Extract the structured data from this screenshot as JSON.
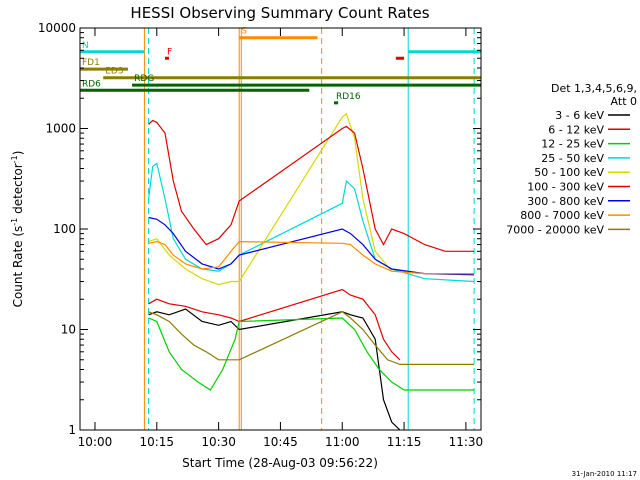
{
  "chart_data": {
    "type": "line",
    "title": "HESSI Observing Summary Count Rates",
    "xlabel": "Start Time (28-Aug-03 09:56:22)",
    "ylabel": "Count Rate (s",
    "ylabel_sup1": "-1",
    "ylabel_mid": " detector",
    "ylabel_sup2": "-1",
    "ylabel_end": ")",
    "y_scale": "log",
    "ylim": [
      1,
      10000
    ],
    "xlim": [
      "09:56:22",
      "11:33:40"
    ],
    "x_ticks": [
      "10:00",
      "10:15",
      "10:30",
      "10:45",
      "11:00",
      "11:15",
      "11:30"
    ],
    "y_ticks": [
      "1",
      "10",
      "100",
      "1000",
      "10000"
    ],
    "timestamp": "31-Jan-2010 11:17",
    "legend_header": [
      "Det 1,3,4,5,6,9,",
      "Att 0"
    ],
    "legend_placement": "right",
    "series": [
      {
        "name": "3 - 6 keV",
        "color": "#000000",
        "x": [
          "10:13",
          "10:15",
          "10:18",
          "10:22",
          "10:26",
          "10:30",
          "10:33",
          "10:35",
          "11:00",
          "11:02",
          "11:05",
          "11:08",
          "11:10",
          "11:12",
          "11:14"
        ],
        "y": [
          14,
          15,
          14,
          16,
          12,
          11,
          12,
          10,
          15,
          14,
          13,
          8,
          2,
          1.2,
          1
        ]
      },
      {
        "name": "6 - 12 keV",
        "color": "#e00000",
        "x": [
          "10:13",
          "10:15",
          "10:18",
          "10:22",
          "10:26",
          "10:30",
          "10:33",
          "10:35",
          "11:00",
          "11:02",
          "11:05",
          "11:08",
          "11:10",
          "11:12",
          "11:14"
        ],
        "y": [
          18,
          20,
          18,
          17,
          15,
          14,
          13,
          12,
          25,
          22,
          20,
          14,
          8,
          6,
          5
        ]
      },
      {
        "name": "12 - 25 keV",
        "color": "#00d000",
        "x": [
          "10:13",
          "10:15",
          "10:18",
          "10:21",
          "10:25",
          "10:28",
          "10:31",
          "10:34",
          "10:35",
          "11:00",
          "11:03",
          "11:06",
          "11:09",
          "11:12",
          "11:15",
          "11:20",
          "11:25",
          "11:32"
        ],
        "y": [
          13,
          12,
          6,
          4,
          3,
          2.5,
          4,
          8,
          12,
          13,
          10,
          6,
          4,
          3,
          2.5,
          2.5,
          2.5,
          2.5
        ]
      },
      {
        "name": "25 - 50 keV",
        "color": "#00d8d8",
        "x": [
          "10:13",
          "10:14",
          "10:15",
          "10:17",
          "10:19",
          "10:22",
          "10:26",
          "10:30",
          "10:33",
          "10:35",
          "11:00",
          "11:01",
          "11:03",
          "11:05",
          "11:08",
          "11:12",
          "11:20",
          "11:32"
        ],
        "y": [
          200,
          420,
          450,
          200,
          80,
          50,
          40,
          38,
          45,
          55,
          180,
          300,
          250,
          120,
          50,
          40,
          32,
          30
        ]
      },
      {
        "name": "50 - 100 keV",
        "color": "#d8d800",
        "x": [
          "10:13",
          "10:15",
          "10:18",
          "10:22",
          "10:26",
          "10:30",
          "10:33",
          "10:35",
          "11:00",
          "11:01",
          "11:03",
          "11:05",
          "11:08",
          "11:12",
          "11:20",
          "11:32"
        ],
        "y": [
          75,
          80,
          55,
          40,
          32,
          28,
          30,
          30,
          1300,
          1400,
          800,
          200,
          60,
          38,
          36,
          35
        ]
      },
      {
        "name": "100 - 300 keV",
        "color": "#e00000",
        "x": [
          "10:13",
          "10:14",
          "10:15",
          "10:17",
          "10:19",
          "10:21",
          "10:24",
          "10:27",
          "10:30",
          "10:33",
          "10:35",
          "11:00",
          "11:01",
          "11:03",
          "11:05",
          "11:08",
          "11:10",
          "11:12",
          "11:15",
          "11:20",
          "11:25",
          "11:32"
        ],
        "y": [
          1100,
          1200,
          1150,
          900,
          300,
          150,
          100,
          70,
          80,
          110,
          190,
          1000,
          1050,
          900,
          400,
          100,
          70,
          100,
          90,
          70,
          60,
          60
        ]
      },
      {
        "name": "300 - 800 keV",
        "color": "#0000e0",
        "x": [
          "10:13",
          "10:15",
          "10:17",
          "10:19",
          "10:22",
          "10:26",
          "10:30",
          "10:33",
          "10:35",
          "11:00",
          "11:02",
          "11:05",
          "11:08",
          "11:12",
          "11:20",
          "11:32"
        ],
        "y": [
          130,
          125,
          110,
          90,
          60,
          45,
          40,
          45,
          55,
          100,
          90,
          70,
          50,
          40,
          36,
          35
        ]
      },
      {
        "name": "800 - 7000 keV",
        "color": "#ff8c00",
        "x": [
          "10:13",
          "10:15",
          "10:17",
          "10:19",
          "10:22",
          "10:26",
          "10:30",
          "10:33",
          "10:35",
          "11:00",
          "11:02",
          "11:05",
          "11:08",
          "11:12",
          "11:20",
          "11:32"
        ],
        "y": [
          72,
          75,
          70,
          55,
          45,
          40,
          42,
          60,
          75,
          72,
          70,
          55,
          45,
          38,
          36,
          36
        ]
      },
      {
        "name": "7000 - 20000 keV",
        "color": "#8b7d00",
        "x": [
          "10:13",
          "10:15",
          "10:18",
          "10:21",
          "10:24",
          "10:27",
          "10:30",
          "10:33",
          "10:35",
          "11:00",
          "11:02",
          "11:05",
          "11:08",
          "11:11",
          "11:14",
          "11:18",
          "11:22",
          "11:26",
          "11:32"
        ],
        "y": [
          15,
          14,
          12,
          9,
          7,
          6,
          5,
          5,
          5,
          15,
          13,
          10,
          7,
          5,
          4.5,
          4.5,
          4.5,
          4.5,
          4.5
        ]
      }
    ],
    "annotations": [
      {
        "label": "N",
        "color": "#00d8d8",
        "x_start": "09:56:22",
        "x_end": "10:12",
        "x_start2": "11:16",
        "x_end2": "11:33:40",
        "y": 5800
      },
      {
        "label": "F",
        "color": "#e00000",
        "x_start": "10:17",
        "x_end": "10:17",
        "x_start2": "11:13",
        "x_end2": "11:15",
        "y": 5000
      },
      {
        "label": "S",
        "color": "#ff8c00",
        "x_start": "10:35",
        "x_end": "10:54",
        "y": 8000
      },
      {
        "label": "FD1",
        "color": "#8b7d00",
        "x_start": "09:56:22",
        "x_end": "10:08",
        "y": 3900
      },
      {
        "label": "ED3",
        "color": "#8b7d00",
        "x_start": "10:02",
        "x_end": "11:33:40",
        "y": 3200
      },
      {
        "label": "RDG",
        "color": "#006400",
        "x_start": "10:09",
        "x_end": "11:33:40",
        "y": 2700
      },
      {
        "label": "RD6",
        "color": "#006400",
        "x_start": "09:56:22",
        "x_end": "10:52",
        "y": 2400
      },
      {
        "label": "RD16",
        "color": "#006400",
        "x_start": "10:58",
        "x_end": "10:59",
        "y": 1800
      }
    ],
    "vertical_lines": [
      {
        "x": "09:56:22",
        "color": "#00d8d8",
        "style": "dashed"
      },
      {
        "x": "10:13",
        "color": "#00d8d8",
        "style": "dashed"
      },
      {
        "x": "10:12",
        "color": "#ff8c00",
        "style": "solid"
      },
      {
        "x": "10:35",
        "color": "#ff8c00",
        "style": "solid"
      },
      {
        "x": "10:35:30",
        "color": "#ff8c00",
        "style": "solid"
      },
      {
        "x": "10:55",
        "color": "#ff8c00",
        "style": "dashed"
      },
      {
        "x": "11:16",
        "color": "#00d8d8",
        "style": "solid"
      },
      {
        "x": "11:32",
        "color": "#00d8d8",
        "style": "dashed"
      }
    ]
  }
}
